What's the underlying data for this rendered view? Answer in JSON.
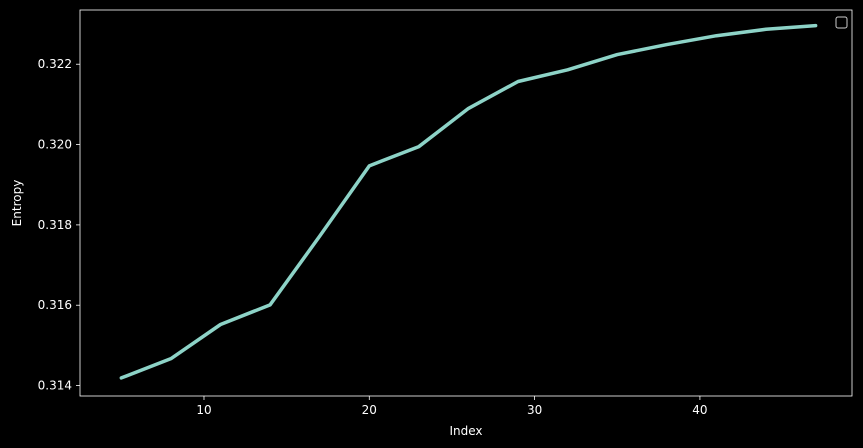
{
  "chart_data": {
    "type": "line",
    "title": "",
    "xlabel": "Index",
    "ylabel": "Entropy",
    "xlim": [
      2.5,
      49.2
    ],
    "ylim": [
      0.31374,
      0.32335
    ],
    "xticks": [
      10,
      20,
      30,
      40
    ],
    "xtick_labels": [
      "10",
      "20",
      "30",
      "40"
    ],
    "yticks": [
      0.314,
      0.316,
      0.318,
      0.32,
      0.322
    ],
    "ytick_labels": [
      "0.314",
      "0.316",
      "0.318",
      "0.320",
      "0.322"
    ],
    "grid": false,
    "legend": "top-right (empty)",
    "series": [
      {
        "color": "#8dd3c7",
        "x": [
          5,
          8,
          11,
          14,
          17,
          20,
          23,
          26,
          29,
          32,
          35,
          38,
          41,
          44,
          47
        ],
        "y": [
          0.31419,
          0.31467,
          0.31552,
          0.31601,
          0.31772,
          0.31947,
          0.31995,
          0.3209,
          0.32157,
          0.32186,
          0.32224,
          0.32249,
          0.32271,
          0.32287,
          0.32296
        ]
      }
    ]
  }
}
